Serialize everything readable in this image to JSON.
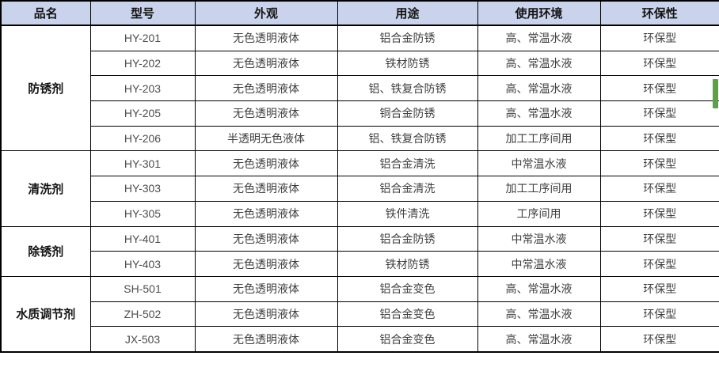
{
  "table": {
    "headers": [
      "品名",
      "型号",
      "外观",
      "用途",
      "使用环境",
      "环保性"
    ],
    "groups": [
      {
        "name": "防锈剂",
        "rows": [
          {
            "model": "HY-201",
            "appearance": "无色透明液体",
            "usage": "铝合金防锈",
            "environment": "高、常温水液",
            "eco": "环保型"
          },
          {
            "model": "HY-202",
            "appearance": "无色透明液体",
            "usage": "铁材防锈",
            "environment": "高、常温水液",
            "eco": "环保型"
          },
          {
            "model": "HY-203",
            "appearance": "无色透明液体",
            "usage": "铝、铁复合防锈",
            "environment": "高、常温水液",
            "eco": "环保型"
          },
          {
            "model": "HY-205",
            "appearance": "无色透明液体",
            "usage": "铜合金防锈",
            "environment": "高、常温水液",
            "eco": "环保型"
          },
          {
            "model": "HY-206",
            "appearance": "半透明无色液体",
            "usage": "铝、铁复合防锈",
            "environment": "加工工序间用",
            "eco": "环保型"
          }
        ]
      },
      {
        "name": "清洗剂",
        "rows": [
          {
            "model": "HY-301",
            "appearance": "无色透明液体",
            "usage": "铝合金清洗",
            "environment": "中常温水液",
            "eco": "环保型"
          },
          {
            "model": "HY-303",
            "appearance": "无色透明液体",
            "usage": "铝合金清洗",
            "environment": "加工工序间用",
            "eco": "环保型"
          },
          {
            "model": "HY-305",
            "appearance": "无色透明液体",
            "usage": "铁件清洗",
            "environment": "工序间用",
            "eco": "环保型"
          }
        ]
      },
      {
        "name": "除锈剂",
        "rows": [
          {
            "model": "HY-401",
            "appearance": "无色透明液体",
            "usage": "铝合金防锈",
            "environment": "中常温水液",
            "eco": "环保型"
          },
          {
            "model": "HY-403",
            "appearance": "无色透明液体",
            "usage": "铁材防锈",
            "environment": "中常温水液",
            "eco": "环保型"
          }
        ]
      },
      {
        "name": "水质调节剂",
        "rows": [
          {
            "model": "SH-501",
            "appearance": "无色透明液体",
            "usage": "铝合金变色",
            "environment": "高、常温水液",
            "eco": "环保型"
          },
          {
            "model": "ZH-502",
            "appearance": "无色透明液体",
            "usage": "铝合金变色",
            "environment": "高、常温水液",
            "eco": "环保型"
          },
          {
            "model": "JX-503",
            "appearance": "无色透明液体",
            "usage": "铝合金变色",
            "environment": "高、常温水液",
            "eco": "环保型"
          }
        ]
      }
    ]
  },
  "colors": {
    "header_bg": "#c9d3ec",
    "border": "#000000",
    "header_text": "#141414",
    "body_text": "#3f3f3f",
    "model_text": "#4d4d4d",
    "marker_green": "#5ba245"
  }
}
